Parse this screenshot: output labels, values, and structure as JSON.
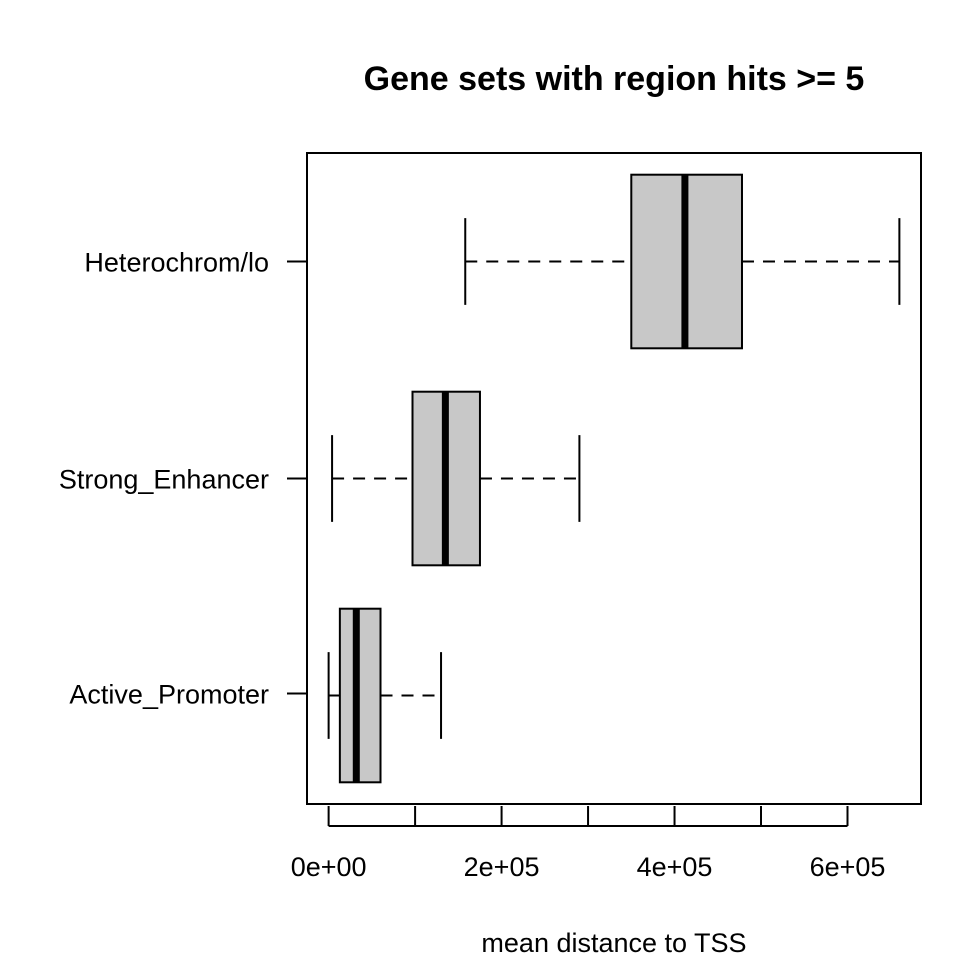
{
  "chart_data": {
    "type": "boxplot",
    "orientation": "horizontal",
    "title": "Gene sets with region hits >= 5",
    "xlabel": "mean distance to TSS",
    "ylabel": "",
    "xlim": [
      -25000,
      685000
    ],
    "x_ticks": [
      0,
      100000,
      200000,
      300000,
      400000,
      500000,
      600000
    ],
    "x_tick_labels": [
      "0e+00",
      "",
      "2e+05",
      "",
      "4e+05",
      "",
      "6e+05"
    ],
    "categories": [
      "Active_Promoter",
      "Strong_Enhancer",
      "Heterochrom/lo"
    ],
    "box_fill": "#c8c8c8",
    "boxes": [
      {
        "label": "Active_Promoter",
        "whisker_low": 0,
        "q1": 13000,
        "median": 32000,
        "q3": 60000,
        "whisker_high": 130000
      },
      {
        "label": "Strong_Enhancer",
        "whisker_low": 4000,
        "q1": 97000,
        "median": 135000,
        "q3": 175000,
        "whisker_high": 290000
      },
      {
        "label": "Heterochrom/lo",
        "whisker_low": 158000,
        "q1": 350000,
        "median": 412000,
        "q3": 478000,
        "whisker_high": 660000
      }
    ]
  }
}
